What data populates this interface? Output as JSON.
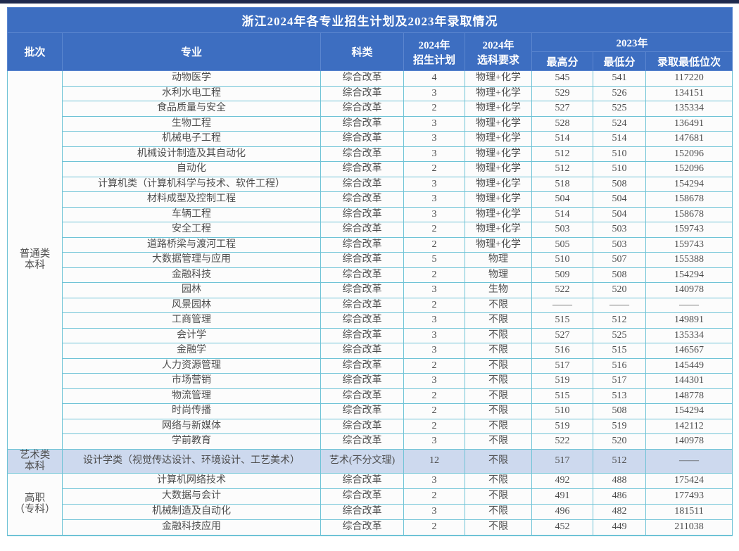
{
  "colors": {
    "header_bg": "#3d6ec1",
    "header_border": "#5b86cf",
    "header_text": "#ffffff",
    "body_border": "#6fc3d6",
    "body_text": "#4d4d4d",
    "highlight_row_bg": "#cdd9ee",
    "top_accent_bar": "#1f2a4e"
  },
  "table_header": {
    "batch": "批次",
    "major": "专业",
    "category": "科类",
    "plan_l1": "2024年",
    "plan_l2": "招生计划",
    "subject_l1": "2024年",
    "subject_l2": "选科要求",
    "year2023": "2023年",
    "max_score": "最高分",
    "min_score": "最低分",
    "min_rank": "录取最低位次"
  },
  "chart_data": {
    "type": "table",
    "title": "浙江2024年各专业招生计划及2023年录取情况",
    "columns": [
      "批次",
      "专业",
      "科类",
      "2024年招生计划",
      "2024年选科要求",
      "2023年最高分",
      "2023年最低分",
      "2023年录取最低位次"
    ],
    "sections": [
      {
        "batch": "普通类\n本科",
        "highlight": false,
        "rows": [
          [
            "动物医学",
            "综合改革",
            "4",
            "物理+化学",
            "545",
            "541",
            "117220"
          ],
          [
            "水利水电工程",
            "综合改革",
            "3",
            "物理+化学",
            "529",
            "526",
            "134151"
          ],
          [
            "食品质量与安全",
            "综合改革",
            "2",
            "物理+化学",
            "527",
            "525",
            "135334"
          ],
          [
            "生物工程",
            "综合改革",
            "3",
            "物理+化学",
            "528",
            "524",
            "136491"
          ],
          [
            "机械电子工程",
            "综合改革",
            "3",
            "物理+化学",
            "514",
            "514",
            "147681"
          ],
          [
            "机械设计制造及其自动化",
            "综合改革",
            "3",
            "物理+化学",
            "512",
            "510",
            "152096"
          ],
          [
            "自动化",
            "综合改革",
            "2",
            "物理+化学",
            "512",
            "510",
            "152096"
          ],
          [
            "计算机类（计算机科学与技术、软件工程）",
            "综合改革",
            "3",
            "物理+化学",
            "518",
            "508",
            "154294"
          ],
          [
            "材料成型及控制工程",
            "综合改革",
            "3",
            "物理+化学",
            "504",
            "504",
            "158678"
          ],
          [
            "车辆工程",
            "综合改革",
            "3",
            "物理+化学",
            "514",
            "504",
            "158678"
          ],
          [
            "安全工程",
            "综合改革",
            "2",
            "物理+化学",
            "503",
            "503",
            "159743"
          ],
          [
            "道路桥梁与渡河工程",
            "综合改革",
            "2",
            "物理+化学",
            "505",
            "503",
            "159743"
          ],
          [
            "大数据管理与应用",
            "综合改革",
            "5",
            "物理",
            "510",
            "507",
            "155388"
          ],
          [
            "金融科技",
            "综合改革",
            "2",
            "物理",
            "509",
            "508",
            "154294"
          ],
          [
            "园林",
            "综合改革",
            "3",
            "生物",
            "522",
            "520",
            "140978"
          ],
          [
            "风景园林",
            "综合改革",
            "2",
            "不限",
            "——",
            "——",
            "——"
          ],
          [
            "工商管理",
            "综合改革",
            "3",
            "不限",
            "515",
            "512",
            "149891"
          ],
          [
            "会计学",
            "综合改革",
            "3",
            "不限",
            "527",
            "525",
            "135334"
          ],
          [
            "金融学",
            "综合改革",
            "3",
            "不限",
            "516",
            "515",
            "146567"
          ],
          [
            "人力资源管理",
            "综合改革",
            "2",
            "不限",
            "517",
            "516",
            "145449"
          ],
          [
            "市场营销",
            "综合改革",
            "3",
            "不限",
            "519",
            "517",
            "144301"
          ],
          [
            "物流管理",
            "综合改革",
            "2",
            "不限",
            "515",
            "513",
            "148778"
          ],
          [
            "时尚传播",
            "综合改革",
            "2",
            "不限",
            "510",
            "508",
            "154294"
          ],
          [
            "网络与新媒体",
            "综合改革",
            "2",
            "不限",
            "519",
            "519",
            "142112"
          ],
          [
            "学前教育",
            "综合改革",
            "3",
            "不限",
            "522",
            "520",
            "140978"
          ]
        ]
      },
      {
        "batch": "艺术类\n本科",
        "highlight": true,
        "rows": [
          [
            "设计学类（视觉传达设计、环境设计、工艺美术）",
            "艺术(不分文理)",
            "12",
            "不限",
            "517",
            "512",
            "——"
          ]
        ]
      },
      {
        "batch": "高职\n（专科）",
        "highlight": false,
        "rows": [
          [
            "计算机网络技术",
            "综合改革",
            "3",
            "不限",
            "492",
            "488",
            "175424"
          ],
          [
            "大数据与会计",
            "综合改革",
            "2",
            "不限",
            "491",
            "486",
            "177493"
          ],
          [
            "机械制造及自动化",
            "综合改革",
            "3",
            "不限",
            "496",
            "482",
            "181511"
          ],
          [
            "金融科技应用",
            "综合改革",
            "2",
            "不限",
            "452",
            "449",
            "211038"
          ]
        ]
      }
    ]
  }
}
